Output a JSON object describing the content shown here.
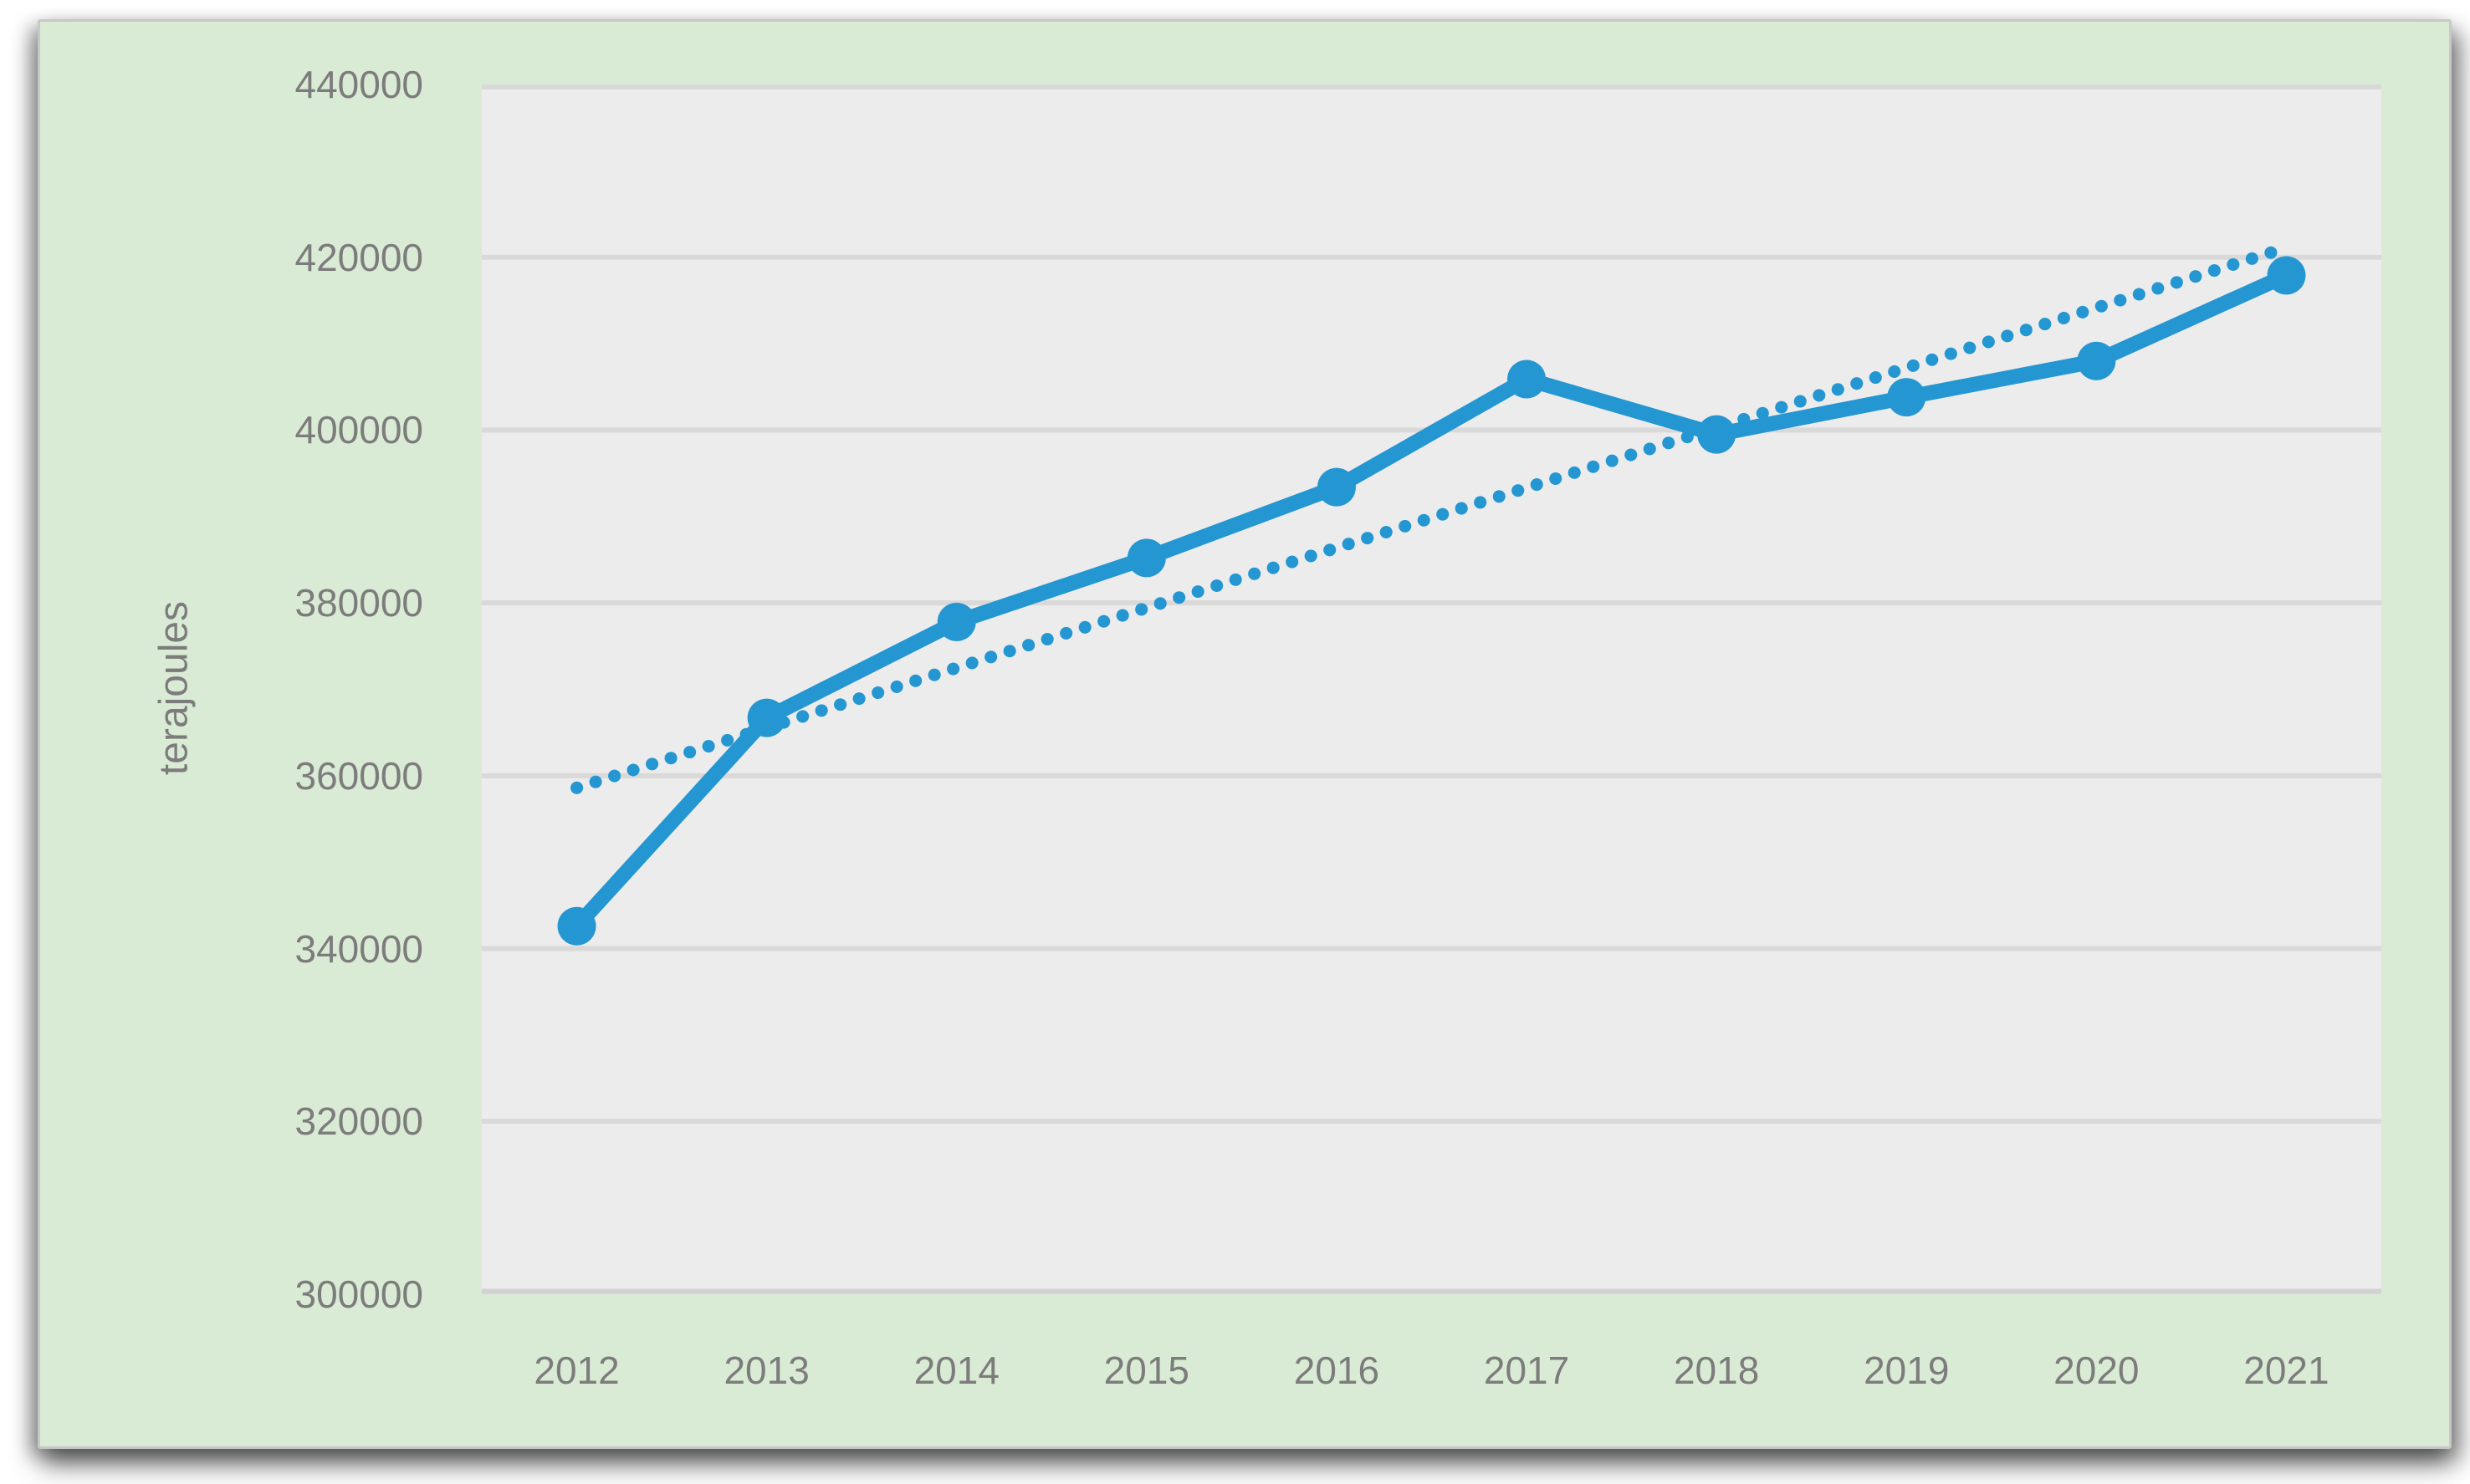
{
  "colors": {
    "accent_blue": "#2496D1",
    "panel_green": "#DAEBD5",
    "plot_gray": "#ECECEC",
    "gridline_gray": "#D9D9D9",
    "axis_line_gray": "#D2D2D2",
    "label_gray": "#7C7C7C"
  },
  "chart_data": {
    "type": "line",
    "title": "",
    "xlabel": "",
    "ylabel": "terajoules",
    "categories": [
      "2012",
      "2013",
      "2014",
      "2015",
      "2016",
      "2017",
      "2018",
      "2019",
      "2020",
      "2021"
    ],
    "series": [
      {
        "values": [
          342600,
          366700,
          377800,
          385200,
          393400,
          405900,
          399500,
          403800,
          408000,
          417900
        ],
        "marker": "circle",
        "style": "solid"
      }
    ],
    "trendline": {
      "type": "linear",
      "style": "dotted",
      "start_value": 358600,
      "end_value": 421100
    },
    "ylim": [
      300000,
      440000
    ],
    "ytick_step": 20000,
    "ytick_labels": [
      "440000",
      "420000",
      "400000",
      "380000",
      "360000",
      "340000",
      "320000",
      "300000"
    ],
    "grid": true,
    "legend": false
  }
}
